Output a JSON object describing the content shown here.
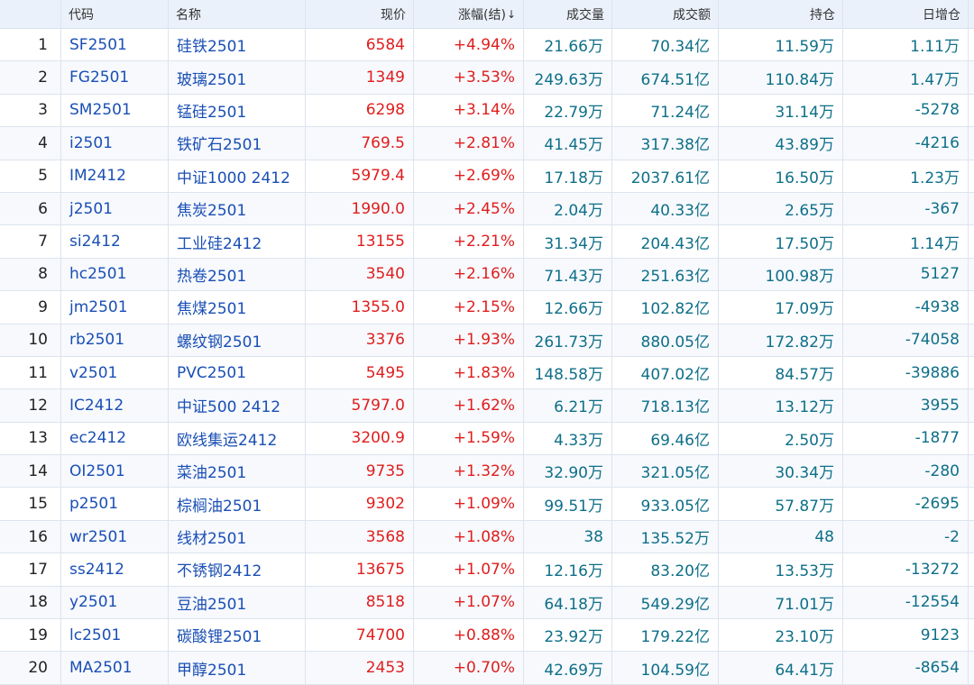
{
  "headers": {
    "idx": "",
    "code": "代码",
    "name": "名称",
    "price": "现价",
    "change": "涨幅(结)",
    "sort_glyph": "↓",
    "volume": "成交量",
    "amount": "成交额",
    "open_interest": "持仓",
    "daily_oi_change": "日增仓"
  },
  "colors": {
    "code": "#1a4fb5",
    "up": "#e01d1d",
    "number": "#0e6f88",
    "header_bg": "#eaf1fa"
  },
  "rows": [
    {
      "idx": "1",
      "code": "SF2501",
      "name": "硅铁2501",
      "price": "6584",
      "change": "+4.94%",
      "volume": "21.66万",
      "amount": "70.34亿",
      "oi": "11.59万",
      "doi": "1.11万"
    },
    {
      "idx": "2",
      "code": "FG2501",
      "name": "玻璃2501",
      "price": "1349",
      "change": "+3.53%",
      "volume": "249.63万",
      "amount": "674.51亿",
      "oi": "110.84万",
      "doi": "1.47万"
    },
    {
      "idx": "3",
      "code": "SM2501",
      "name": "锰硅2501",
      "price": "6298",
      "change": "+3.14%",
      "volume": "22.79万",
      "amount": "71.24亿",
      "oi": "31.14万",
      "doi": "-5278"
    },
    {
      "idx": "4",
      "code": "i2501",
      "name": "铁矿石2501",
      "price": "769.5",
      "change": "+2.81%",
      "volume": "41.45万",
      "amount": "317.38亿",
      "oi": "43.89万",
      "doi": "-4216"
    },
    {
      "idx": "5",
      "code": "IM2412",
      "name": "中证1000 2412",
      "price": "5979.4",
      "change": "+2.69%",
      "volume": "17.18万",
      "amount": "2037.61亿",
      "oi": "16.50万",
      "doi": "1.23万"
    },
    {
      "idx": "6",
      "code": "j2501",
      "name": "焦炭2501",
      "price": "1990.0",
      "change": "+2.45%",
      "volume": "2.04万",
      "amount": "40.33亿",
      "oi": "2.65万",
      "doi": "-367"
    },
    {
      "idx": "7",
      "code": "si2412",
      "name": "工业硅2412",
      "price": "13155",
      "change": "+2.21%",
      "volume": "31.34万",
      "amount": "204.43亿",
      "oi": "17.50万",
      "doi": "1.14万"
    },
    {
      "idx": "8",
      "code": "hc2501",
      "name": "热卷2501",
      "price": "3540",
      "change": "+2.16%",
      "volume": "71.43万",
      "amount": "251.63亿",
      "oi": "100.98万",
      "doi": "5127"
    },
    {
      "idx": "9",
      "code": "jm2501",
      "name": "焦煤2501",
      "price": "1355.0",
      "change": "+2.15%",
      "volume": "12.66万",
      "amount": "102.82亿",
      "oi": "17.09万",
      "doi": "-4938"
    },
    {
      "idx": "10",
      "code": "rb2501",
      "name": "螺纹钢2501",
      "price": "3376",
      "change": "+1.93%",
      "volume": "261.73万",
      "amount": "880.05亿",
      "oi": "172.82万",
      "doi": "-74058"
    },
    {
      "idx": "11",
      "code": "v2501",
      "name": "PVC2501",
      "price": "5495",
      "change": "+1.83%",
      "volume": "148.58万",
      "amount": "407.02亿",
      "oi": "84.57万",
      "doi": "-39886"
    },
    {
      "idx": "12",
      "code": "IC2412",
      "name": "中证500 2412",
      "price": "5797.0",
      "change": "+1.62%",
      "volume": "6.21万",
      "amount": "718.13亿",
      "oi": "13.12万",
      "doi": "3955"
    },
    {
      "idx": "13",
      "code": "ec2412",
      "name": "欧线集运2412",
      "price": "3200.9",
      "change": "+1.59%",
      "volume": "4.33万",
      "amount": "69.46亿",
      "oi": "2.50万",
      "doi": "-1877"
    },
    {
      "idx": "14",
      "code": "OI2501",
      "name": "菜油2501",
      "price": "9735",
      "change": "+1.32%",
      "volume": "32.90万",
      "amount": "321.05亿",
      "oi": "30.34万",
      "doi": "-280"
    },
    {
      "idx": "15",
      "code": "p2501",
      "name": "棕榈油2501",
      "price": "9302",
      "change": "+1.09%",
      "volume": "99.51万",
      "amount": "933.05亿",
      "oi": "57.87万",
      "doi": "-2695"
    },
    {
      "idx": "16",
      "code": "wr2501",
      "name": "线材2501",
      "price": "3568",
      "change": "+1.08%",
      "volume": "38",
      "amount": "135.52万",
      "oi": "48",
      "doi": "-2"
    },
    {
      "idx": "17",
      "code": "ss2412",
      "name": "不锈钢2412",
      "price": "13675",
      "change": "+1.07%",
      "volume": "12.16万",
      "amount": "83.20亿",
      "oi": "13.53万",
      "doi": "-13272"
    },
    {
      "idx": "18",
      "code": "y2501",
      "name": "豆油2501",
      "price": "8518",
      "change": "+1.07%",
      "volume": "64.18万",
      "amount": "549.29亿",
      "oi": "71.01万",
      "doi": "-12554"
    },
    {
      "idx": "19",
      "code": "lc2501",
      "name": "碳酸锂2501",
      "price": "74700",
      "change": "+0.88%",
      "volume": "23.92万",
      "amount": "179.22亿",
      "oi": "23.10万",
      "doi": "9123"
    },
    {
      "idx": "20",
      "code": "MA2501",
      "name": "甲醇2501",
      "price": "2453",
      "change": "+0.70%",
      "volume": "42.69万",
      "amount": "104.59亿",
      "oi": "64.41万",
      "doi": "-8654"
    }
  ]
}
